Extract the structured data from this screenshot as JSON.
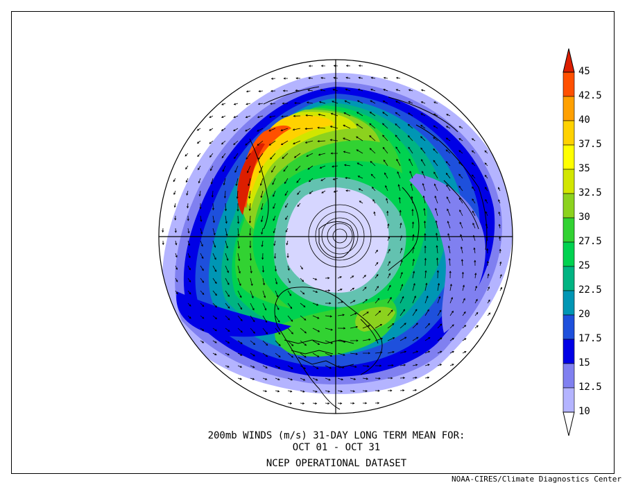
{
  "title": {
    "line1": "200mb WINDS (m/s)   31-DAY LONG TERM MEAN FOR:",
    "line2": "OCT 01 - OCT 31",
    "line3": "NCEP OPERATIONAL DATASET"
  },
  "credit": "NOAA-CIRES/Climate Diagnostics Center",
  "map": {
    "projection": "north-polar-stereographic",
    "gridlines": "meridians 0/90/180/270",
    "overlays": [
      "coastlines",
      "country-borders",
      "us-state-borders",
      "wind-vector-arrows"
    ]
  },
  "legend": {
    "levels": [
      "45",
      "42.5",
      "40",
      "37.5",
      "35",
      "32.5",
      "30",
      "27.5",
      "25",
      "22.5",
      "20",
      "17.5",
      "15",
      "12.5",
      "10"
    ],
    "colors": [
      "#ffffff",
      "#b4b4ff",
      "#8080f0",
      "#0000e6",
      "#1e50dc",
      "#0096b4",
      "#00b482",
      "#00d250",
      "#32d232",
      "#8cd21e",
      "#d2e600",
      "#ffff00",
      "#ffd200",
      "#ffa000",
      "#ff5000",
      "#dc1e00"
    ]
  }
}
